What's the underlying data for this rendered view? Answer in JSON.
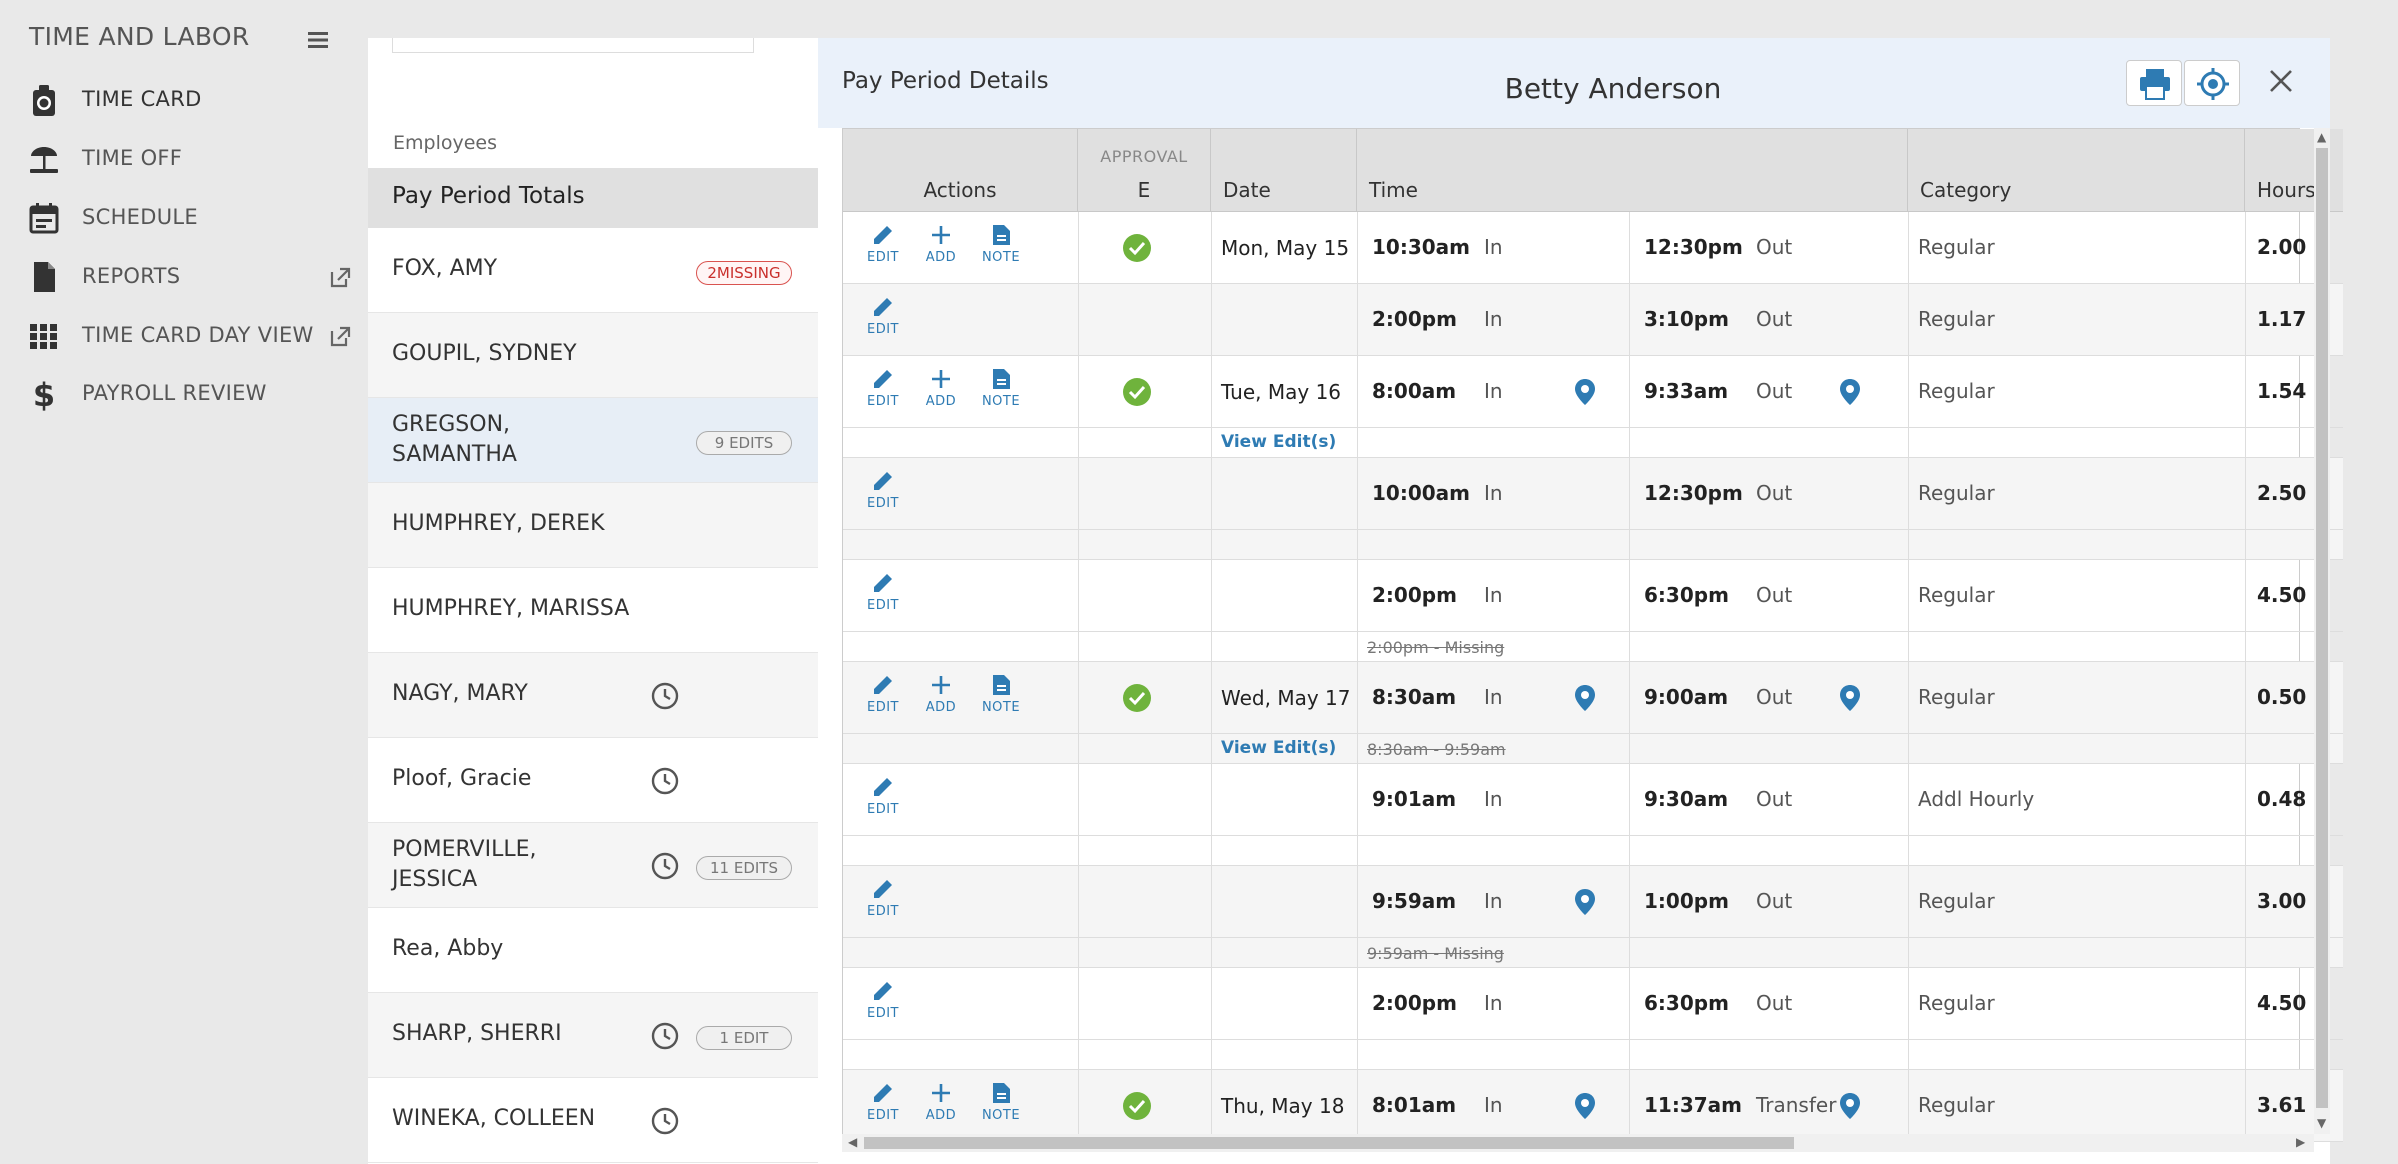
{
  "nav": {
    "title": "TIME AND LABOR",
    "items": [
      {
        "label": "TIME CARD",
        "icon": "timecard-icon"
      },
      {
        "label": "TIME OFF",
        "icon": "beach-icon"
      },
      {
        "label": "SCHEDULE",
        "icon": "calendar-icon"
      },
      {
        "label": "REPORTS",
        "icon": "document-icon"
      },
      {
        "label": "TIME CARD DAY VIEW",
        "icon": "grid-icon"
      },
      {
        "label": "PAYROLL REVIEW",
        "icon": "dollar-icon"
      }
    ]
  },
  "employees": {
    "header": "Employees",
    "totals_label": "Pay Period Totals",
    "list": [
      {
        "name": "FOX, AMY",
        "badge": "2MISSING"
      },
      {
        "name": "GOUPIL, SYDNEY",
        "badge": ""
      },
      {
        "name": "GREGSON, SAMANTHA",
        "badge": "9 EDITS"
      },
      {
        "name": "HUMPHREY, DEREK",
        "badge": ""
      },
      {
        "name": "HUMPHREY, MARISSA",
        "badge": ""
      },
      {
        "name": "NAGY, MARY",
        "badge": ""
      },
      {
        "name": "Ploof, Gracie",
        "badge": ""
      },
      {
        "name": "POMERVILLE, JESSICA",
        "badge": "11 EDITS"
      },
      {
        "name": "Rea, Abby",
        "badge": ""
      },
      {
        "name": "SHARP, SHERRI",
        "badge": "1 EDIT"
      },
      {
        "name": "WINEKA, COLLEEN",
        "badge": ""
      }
    ]
  },
  "panel": {
    "title": "Pay Period Details",
    "employee": "Betty Anderson",
    "columns": {
      "actions": "Actions",
      "approval_top": "APPROVAL",
      "approval": "E",
      "date": "Date",
      "time": "Time",
      "category": "Category",
      "hours": "Hours"
    },
    "action_labels": {
      "edit": "EDIT",
      "add": "ADD",
      "note": "NOTE"
    },
    "in_label": "In",
    "out_label": "Out",
    "view_edits": "View Edit(s)",
    "rows": [
      {
        "date": "Mon, May 15",
        "in": "10:30am",
        "out": "12:30pm",
        "out_label": "Out",
        "category": "Regular",
        "hours": "2.00"
      },
      {
        "date": "",
        "in": "2:00pm",
        "out": "3:10pm",
        "out_label": "Out",
        "category": "Regular",
        "hours": "1.17"
      },
      {
        "date": "Tue, May 16",
        "in": "8:00am",
        "out": "9:33am",
        "out_label": "Out",
        "category": "Regular",
        "hours": "1.54"
      },
      {
        "date": "",
        "in": "10:00am",
        "out": "12:30pm",
        "out_label": "Out",
        "category": "Regular",
        "hours": "2.50"
      },
      {
        "date": "",
        "in": "2:00pm",
        "out": "6:30pm",
        "out_label": "Out",
        "category": "Regular",
        "hours": "4.50"
      },
      {
        "date": "Wed, May 17",
        "in": "8:30am",
        "out": "9:00am",
        "out_label": "Out",
        "category": "Regular",
        "hours": "0.50"
      },
      {
        "date": "",
        "in": "9:01am",
        "out": "9:30am",
        "out_label": "Out",
        "category": "Addl Hourly",
        "hours": "0.48"
      },
      {
        "date": "",
        "in": "9:59am",
        "out": "1:00pm",
        "out_label": "Out",
        "category": "Regular",
        "hours": "3.00"
      },
      {
        "date": "",
        "in": "2:00pm",
        "out": "6:30pm",
        "out_label": "Out",
        "category": "Regular",
        "hours": "4.50"
      },
      {
        "date": "Thu, May 18",
        "in": "8:01am",
        "out": "11:37am",
        "out_label": "Transfer",
        "category": "Regular",
        "hours": "3.61"
      }
    ],
    "notes": {
      "n1": "2:00pm - Missing",
      "n2": "8:30am - 9:59am",
      "n3": "9:59am - Missing"
    }
  },
  "colors": {
    "accent": "#2e7bb3",
    "approve": "#6fb33c",
    "missing": "#d9534f"
  }
}
